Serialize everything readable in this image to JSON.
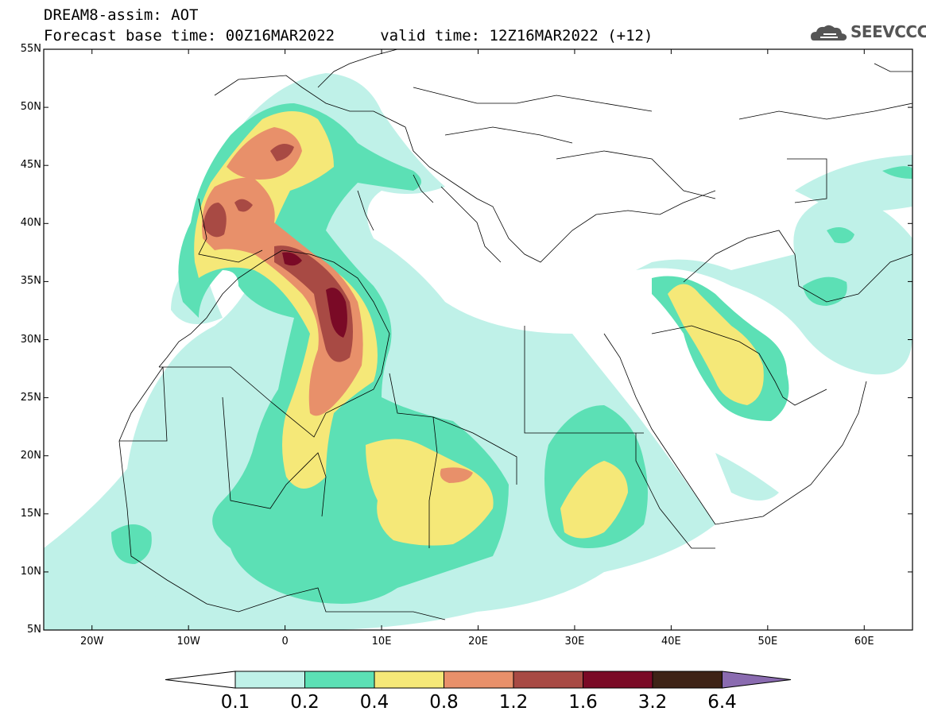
{
  "header": {
    "title_line1": "DREAM8-assim: AOT",
    "title_line2": "Forecast base time: 00Z16MAR2022     valid time: 12Z16MAR2022 (+12)",
    "logo_text": "SEEVCCC",
    "logo_icon": "cloud-icon"
  },
  "map": {
    "lat_range": [
      5,
      55
    ],
    "lon_range": [
      -25,
      65
    ],
    "lat_labels": [
      "55N",
      "50N",
      "45N",
      "40N",
      "35N",
      "30N",
      "25N",
      "20N",
      "15N",
      "10N",
      "5N"
    ],
    "lon_labels": [
      "20W",
      "10W",
      "0",
      "10E",
      "20E",
      "30E",
      "40E",
      "50E",
      "60E"
    ]
  },
  "colorbar": {
    "levels": [
      "0.1",
      "0.2",
      "0.4",
      "0.8",
      "1.2",
      "1.6",
      "3.2",
      "6.4"
    ],
    "colors": [
      "#ffffff",
      "#bff1e8",
      "#5ce0b5",
      "#f5e878",
      "#e8906a",
      "#a84a44",
      "#7a0a26",
      "#3e2316",
      "#8a6bb0"
    ]
  }
}
